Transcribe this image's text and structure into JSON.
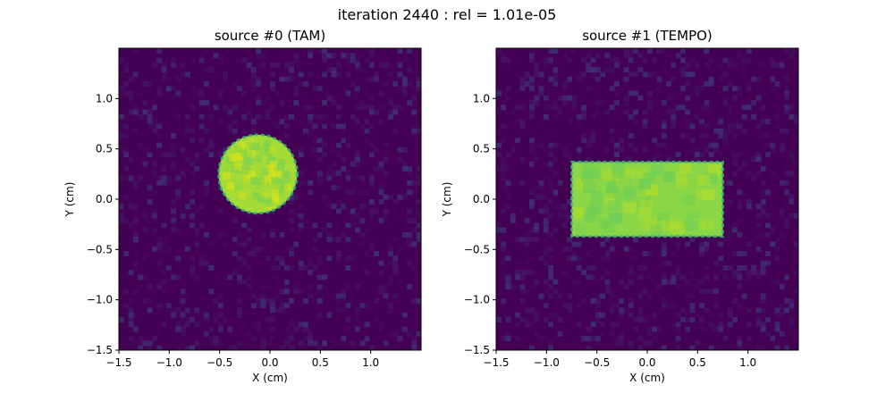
{
  "suptitle": "iteration 2440 : rel = 1.01e-05",
  "colors": {
    "background": "#440154",
    "noise_light": "#3b4f8a",
    "noise_mid": "#472d7b",
    "fill_circle": "#a5db36",
    "fill_rect": "#8bd646",
    "highlight": "#dde318",
    "axis": "#000000"
  },
  "chart_data": [
    {
      "type": "heatmap",
      "title": "source #0 (TAM)",
      "xlabel": "X (cm)",
      "ylabel": "Y (cm)",
      "xlim": [
        -1.5,
        1.5
      ],
      "ylim": [
        -1.5,
        1.5
      ],
      "xticks": [
        -1.5,
        -1.0,
        -0.5,
        0.0,
        0.5,
        1.0
      ],
      "yticks": [
        -1.5,
        -1.0,
        -0.5,
        0.0,
        0.5,
        1.0
      ],
      "xtick_labels": [
        "−1.5",
        "−1.0",
        "−0.5",
        "0.0",
        "0.5",
        "1.0"
      ],
      "ytick_labels": [
        "−1.5",
        "−1.0",
        "−0.5",
        "0.0",
        "0.5",
        "1.0"
      ],
      "colormap": "viridis",
      "grid": false,
      "features": [
        {
          "shape": "circle",
          "center": [
            -0.12,
            0.25
          ],
          "radius": 0.39,
          "value": 0.85
        }
      ]
    },
    {
      "type": "heatmap",
      "title": "source #1 (TEMPO)",
      "xlabel": "X (cm)",
      "ylabel": "Y (cm)",
      "xlim": [
        -1.5,
        1.5
      ],
      "ylim": [
        -1.5,
        1.5
      ],
      "xticks": [
        -1.5,
        -1.0,
        -0.5,
        0.0,
        0.5,
        1.0
      ],
      "yticks": [
        -1.5,
        -1.0,
        -0.5,
        0.0,
        0.5,
        1.0
      ],
      "xtick_labels": [
        "−1.5",
        "−1.0",
        "−0.5",
        "0.0",
        "0.5",
        "1.0"
      ],
      "ytick_labels": [
        "−1.5",
        "−1.0",
        "−0.5",
        "0.0",
        "0.5",
        "1.0"
      ],
      "colormap": "viridis",
      "grid": false,
      "features": [
        {
          "shape": "rect",
          "x_range": [
            -0.75,
            0.75
          ],
          "y_range": [
            -0.37,
            0.37
          ],
          "value": 0.8
        }
      ]
    }
  ]
}
